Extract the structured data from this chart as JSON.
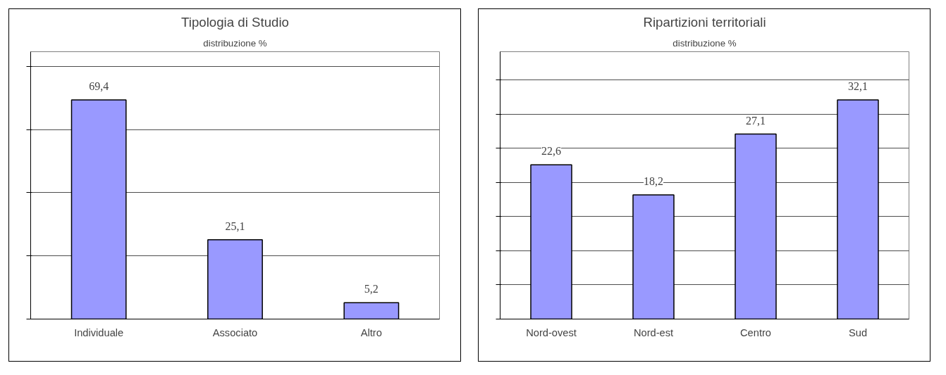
{
  "chart_data": [
    {
      "type": "bar",
      "title": "Tipologia di Studio",
      "subtitle": "distribuzione %",
      "categories": [
        "Individuale",
        "Associato",
        "Altro"
      ],
      "values": [
        69.4,
        25.1,
        5.2
      ],
      "value_labels": [
        "69,4",
        "25,1",
        "5,2"
      ],
      "color": "#9999ff",
      "grid": "y",
      "tick_labels": "x"
    },
    {
      "type": "bar",
      "title": "Ripartizioni territoriali",
      "subtitle": "distribuzione %",
      "categories": [
        "Nord-ovest",
        "Nord-est",
        "Centro",
        "Sud"
      ],
      "values": [
        22.6,
        18.2,
        27.1,
        32.1
      ],
      "value_labels": [
        "22,6",
        "18,2",
        "27,1",
        "32,1"
      ],
      "color": "#9999ff",
      "grid": "y",
      "tick_labels": "x"
    }
  ]
}
